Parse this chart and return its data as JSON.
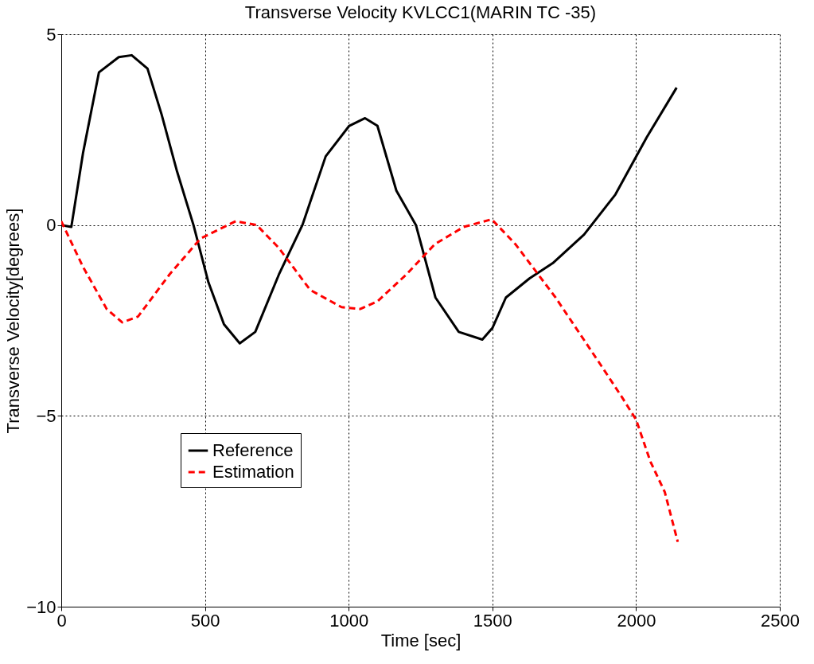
{
  "chart_data": {
    "type": "line",
    "title": "Transverse Velocity KVLCC1(MARIN TC -35)",
    "xlabel": "Time [sec]",
    "ylabel": "Transverse Velocity[degrees]",
    "xlim": [
      0,
      2500
    ],
    "xticks": [
      0,
      500,
      1000,
      1500,
      2000,
      2500
    ],
    "ylim": [
      -10,
      5
    ],
    "yticks": [
      -10,
      -5,
      0,
      5
    ],
    "grid": true,
    "legend": "bottom left",
    "series": [
      {
        "name": "Reference",
        "color": "#000000",
        "line_style": "solid",
        "x": [
          0,
          35,
          76,
          131,
          200,
          245,
          300,
          349,
          403,
          460,
          512,
          566,
          621,
          675,
          757,
          839,
          920,
          1002,
          1057,
          1100,
          1166,
          1234,
          1302,
          1383,
          1465,
          1500,
          1547,
          1629,
          1710,
          1819,
          1928,
          2037,
          2141
        ],
        "values": [
          0,
          -0.05,
          1.9,
          4.0,
          4.4,
          4.45,
          4.1,
          2.9,
          1.4,
          0,
          -1.5,
          -2.6,
          -3.1,
          -2.8,
          -1.3,
          0,
          1.8,
          2.6,
          2.8,
          2.6,
          0.9,
          0,
          -1.9,
          -2.8,
          -3.0,
          -2.7,
          -1.9,
          -1.4,
          -1.0,
          -0.25,
          0.8,
          2.3,
          3.6
        ]
      },
      {
        "name": "Estimation",
        "color": "#ff0000",
        "line_style": "dashed",
        "x": [
          0,
          76,
          158,
          212,
          267,
          376,
          485,
          607,
          680,
          757,
          866,
          975,
          1040,
          1100,
          1200,
          1300,
          1400,
          1498,
          1580,
          1650,
          1720,
          1800,
          1880,
          1950,
          2000,
          2050,
          2100,
          2145
        ],
        "values": [
          0.1,
          -1.1,
          -2.2,
          -2.55,
          -2.4,
          -1.3,
          -0.35,
          0.1,
          0.0,
          -0.6,
          -1.7,
          -2.15,
          -2.2,
          -2.0,
          -1.3,
          -0.5,
          -0.05,
          0.15,
          -0.5,
          -1.2,
          -1.9,
          -2.8,
          -3.7,
          -4.5,
          -5.1,
          -6.2,
          -7.0,
          -8.3
        ]
      }
    ]
  }
}
